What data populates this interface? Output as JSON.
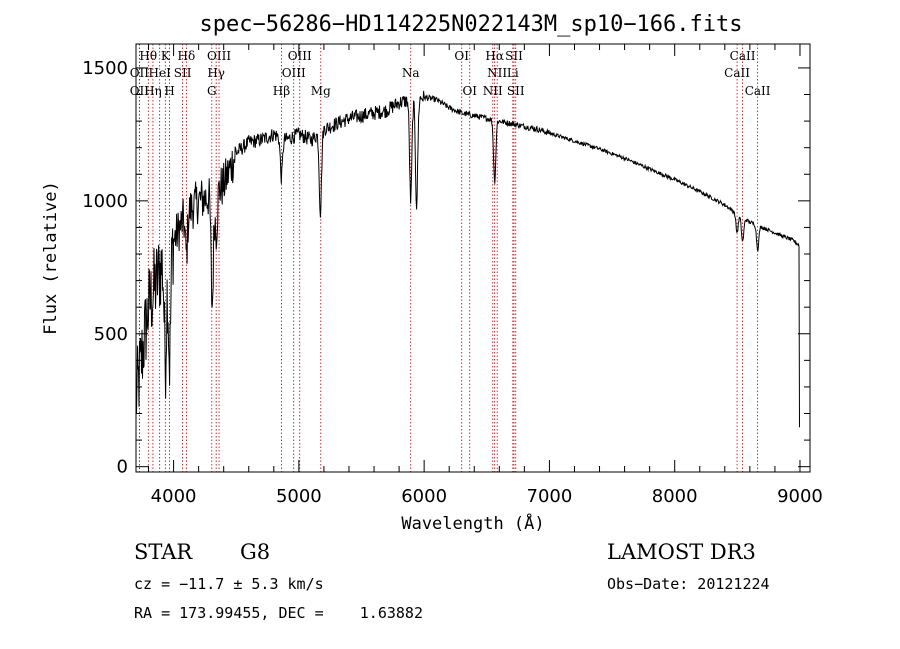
{
  "chart_data": {
    "type": "line",
    "title": "spec−56286−HD114225N022143M_sp10−166.fits",
    "xlabel": "Wavelength (Å)",
    "ylabel": "Flux (relative)",
    "xlim": [
      3700,
      9080
    ],
    "ylim": [
      -20,
      1590
    ],
    "x_ticks": [
      4000,
      5000,
      6000,
      7000,
      8000,
      9000
    ],
    "y_ticks": [
      0,
      500,
      1000,
      1500
    ],
    "continuum": [
      [
        3700,
        250
      ],
      [
        3800,
        600
      ],
      [
        3900,
        750
      ],
      [
        4000,
        850
      ],
      [
        4100,
        950
      ],
      [
        4200,
        1000
      ],
      [
        4300,
        1020
      ],
      [
        4400,
        1060
      ],
      [
        4500,
        1180
      ],
      [
        4600,
        1220
      ],
      [
        4700,
        1230
      ],
      [
        4800,
        1250
      ],
      [
        4900,
        1230
      ],
      [
        5000,
        1250
      ],
      [
        5100,
        1230
      ],
      [
        5200,
        1270
      ],
      [
        5300,
        1290
      ],
      [
        5400,
        1310
      ],
      [
        5500,
        1320
      ],
      [
        5600,
        1330
      ],
      [
        5700,
        1340
      ],
      [
        5800,
        1370
      ],
      [
        5900,
        1380
      ],
      [
        6000,
        1390
      ],
      [
        6100,
        1380
      ],
      [
        6200,
        1350
      ],
      [
        6300,
        1330
      ],
      [
        6400,
        1320
      ],
      [
        6500,
        1310
      ],
      [
        6600,
        1300
      ],
      [
        6700,
        1290
      ],
      [
        6800,
        1280
      ],
      [
        6900,
        1270
      ],
      [
        7000,
        1255
      ],
      [
        7200,
        1225
      ],
      [
        7400,
        1195
      ],
      [
        7600,
        1160
      ],
      [
        7800,
        1120
      ],
      [
        8000,
        1080
      ],
      [
        8200,
        1035
      ],
      [
        8400,
        985
      ],
      [
        8500,
        950
      ],
      [
        8600,
        920
      ],
      [
        8800,
        880
      ],
      [
        8950,
        850
      ],
      [
        9000,
        830
      ]
    ],
    "absorption": [
      {
        "x": 3934,
        "depth": 380
      },
      {
        "x": 3968,
        "depth": 420
      },
      {
        "x": 4102,
        "depth": 150
      },
      {
        "x": 4308,
        "depth": 420
      },
      {
        "x": 4340,
        "depth": 150
      },
      {
        "x": 4861,
        "depth": 150
      },
      {
        "x": 5172,
        "depth": 300
      },
      {
        "x": 5893,
        "depth": 380
      },
      {
        "x": 5940,
        "depth": 400
      },
      {
        "x": 6563,
        "depth": 230
      },
      {
        "x": 8498,
        "depth": 70
      },
      {
        "x": 8542,
        "depth": 90
      },
      {
        "x": 8662,
        "depth": 90
      }
    ],
    "spectral_lines": [
      {
        "label": "Hθ",
        "x": 3798,
        "row": 0
      },
      {
        "label": "K",
        "x": 3934,
        "row": 0
      },
      {
        "label": "Hδ",
        "x": 4102,
        "row": 0
      },
      {
        "label": "OIII",
        "x": 4363,
        "row": 0
      },
      {
        "label": "OIII",
        "x": 5007,
        "row": 0
      },
      {
        "label": "OI",
        "x": 6300,
        "row": 0
      },
      {
        "label": "Hα",
        "x": 6563,
        "row": 0
      },
      {
        "label": "SII",
        "x": 6717,
        "row": 0
      },
      {
        "label": "CaII",
        "x": 8542,
        "row": 0
      },
      {
        "label": "OII",
        "x": 3727,
        "row": 1
      },
      {
        "label": "HeI",
        "x": 3889,
        "row": 1
      },
      {
        "label": "SII",
        "x": 4072,
        "row": 1
      },
      {
        "label": "Hγ",
        "x": 4340,
        "row": 1
      },
      {
        "label": "OIII",
        "x": 4959,
        "row": 1
      },
      {
        "label": "Na",
        "x": 5893,
        "row": 1
      },
      {
        "label": "NII",
        "x": 6583,
        "row": 1
      },
      {
        "label": "Li",
        "x": 6708,
        "row": 1
      },
      {
        "label": "CaII",
        "x": 8498,
        "row": 1
      },
      {
        "label": "OII",
        "x": 3727,
        "row": 2
      },
      {
        "label": "Hη",
        "x": 3835,
        "row": 2
      },
      {
        "label": "H",
        "x": 3968,
        "row": 2
      },
      {
        "label": "G",
        "x": 4305,
        "row": 2
      },
      {
        "label": "Hβ",
        "x": 4861,
        "row": 2
      },
      {
        "label": "Mg",
        "x": 5175,
        "row": 2
      },
      {
        "label": "OI",
        "x": 6364,
        "row": 2
      },
      {
        "label": "NII",
        "x": 6548,
        "row": 2
      },
      {
        "label": "SII",
        "x": 6731,
        "row": 2
      },
      {
        "label": "CaII",
        "x": 8662,
        "row": 2
      }
    ]
  },
  "info": {
    "class": "STAR",
    "subclass": "G8",
    "survey": "LAMOST DR3",
    "cz": "cz = −11.7 ± 5.3 km/s",
    "obs_date": "Obs−Date: 20121224",
    "coords": "RA = 173.99455, DEC =    1.63882"
  }
}
